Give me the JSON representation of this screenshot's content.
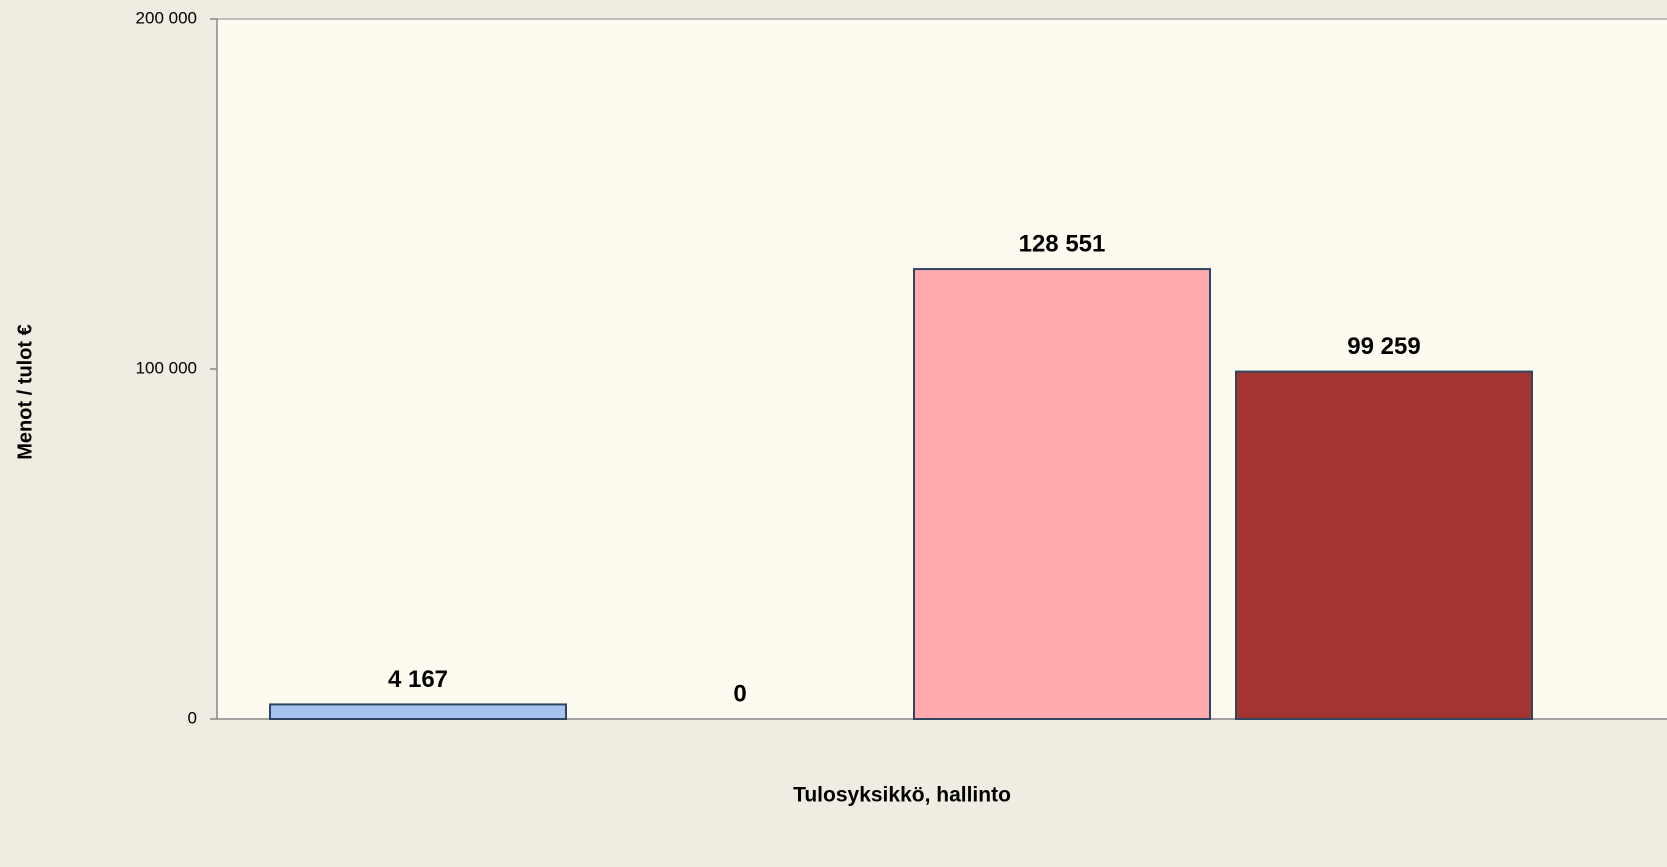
{
  "chart_data": {
    "type": "bar",
    "x_label": "Tulosyksikkö, hallinto",
    "y_label": "Menot / tulot €",
    "values": [
      4167,
      0,
      128551,
      99259
    ],
    "value_labels": [
      "4 167",
      "0",
      "128 551",
      "99 259"
    ],
    "colors": [
      "#a6c3f0",
      "#4f6fb0",
      "#ffabad",
      "#a33432"
    ],
    "ylim": [
      0,
      200000
    ],
    "yticks": [
      {
        "value": 0,
        "label": "0"
      },
      {
        "value": 100000,
        "label": "100 000"
      },
      {
        "value": 200000,
        "label": "200 000"
      }
    ],
    "grid": false
  }
}
